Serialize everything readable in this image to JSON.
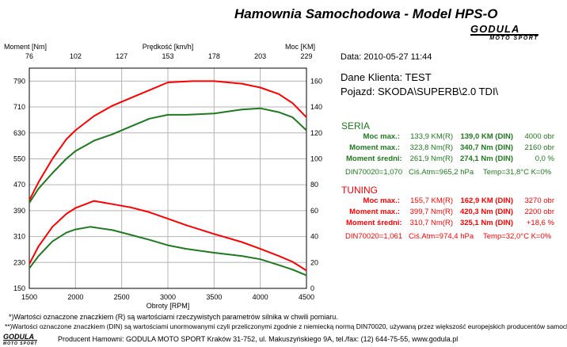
{
  "header": {
    "title": "Hamownia Samochodowa   -   Model HPS-O",
    "logo_top": "GODULA",
    "logo_bottom": "MOTO SPORT"
  },
  "info": {
    "date": "Data: 2010-05-27  11:44",
    "client": "Dane Klienta: TEST",
    "vehicle": "Pojazd: SKODA\\SUPERB\\2.0 TDI\\"
  },
  "seria": {
    "title": "SERIA",
    "rows": [
      {
        "label": "Moc max.:",
        "r": "133,9 KM(R)",
        "din": "139,0 KM (DIN)",
        "extra": "4000 obr"
      },
      {
        "label": "Moment max.:",
        "r": "323,8 Nm(R)",
        "din": "340,7 Nm (DIN)",
        "extra": "2160 obr"
      },
      {
        "label": "Moment średni:",
        "r": "261,9 Nm(R)",
        "din": "274,1 Nm (DIN)",
        "extra": "0,0 %"
      }
    ],
    "footer": {
      "din": "DIN70020=1,070",
      "atm": "Ciś.Atm=965,2 hPa",
      "temp": "Temp=31,8°C  K=0%"
    }
  },
  "tuning": {
    "title": "TUNING",
    "rows": [
      {
        "label": "Moc max.:",
        "r": "155,7 KM(R)",
        "din": "162,9 KM (DIN)",
        "extra": "3270 obr"
      },
      {
        "label": "Moment max.:",
        "r": "399,7 Nm(R)",
        "din": "420,3 Nm (DIN)",
        "extra": "2200 obr"
      },
      {
        "label": "Moment średni:",
        "r": "310,7 Nm(R)",
        "din": "325,1 Nm (DIN)",
        "extra": "+18,6 %"
      }
    ],
    "footer": {
      "din": "DIN70020=1,061",
      "atm": "Ciś.Atm=974,4 hPa",
      "temp": "Temp=32,0°C  K=0%"
    }
  },
  "footer": {
    "note1": "*)Wartości oznaczone znaczkiem (R) są wartościami rzeczywistych parametrów silnika w chwili pomiaru.",
    "note2": "**)Wartości oznaczone znaczkiem (DIN) są wartościami unormowanymi czyli przeliczonymi zgodnie z niemiecką normą DIN70020, używaną przez większość europejskich producentów samochodów.",
    "producer": "Producent Hamowni: GODULA MOTO SPORT Kraków 31-752, ul. Makuszyńskiego 9A, tel./fax: (12) 644-75-55, www.godula.pl",
    "logo_top": "GODULA",
    "logo_bottom": "MOTO SPORT"
  },
  "colors": {
    "seria": "#1e7a1e",
    "tuning": "#ff0000",
    "grid": "#b4b4b4",
    "background": "#ffffff"
  },
  "chart_data": {
    "type": "line",
    "xlabel": "Obroty [RPM]",
    "x_ticks": [
      1500,
      2000,
      2500,
      3000,
      3500,
      4000,
      4500
    ],
    "xlim": [
      1500,
      4500
    ],
    "top_axis_label": "Prędkość [km/h]",
    "top_ticks": [
      "76",
      "102",
      "127",
      "153",
      "178",
      "203",
      "229"
    ],
    "ylabel_left": "Moment [Nm]",
    "ylim_left": [
      150,
      830
    ],
    "y_ticks_left": [
      150,
      230,
      310,
      390,
      470,
      550,
      630,
      710,
      790
    ],
    "ylabel_right": "Moc [KM]",
    "ylim_right": [
      0,
      170
    ],
    "y_ticks_right": [
      0,
      20,
      40,
      60,
      80,
      100,
      120,
      140,
      160
    ],
    "grid": true,
    "series": [
      {
        "name": "TUNING",
        "axis": "right",
        "color": "#ff0000",
        "x": [
          1500,
          1600,
          1750,
          1900,
          2000,
          2200,
          2400,
          2600,
          2800,
          3000,
          3270,
          3500,
          3800,
          4000,
          4200,
          4350,
          4500
        ],
        "values": [
          68,
          82,
          100,
          115,
          122,
          133,
          141,
          147,
          153,
          159,
          160,
          160,
          158,
          155,
          150,
          143,
          132
        ]
      },
      {
        "name": "TUNING",
        "axis": "left",
        "color": "#ff0000",
        "x": [
          1500,
          1600,
          1750,
          1900,
          2000,
          2200,
          2400,
          2600,
          2800,
          3000,
          3200,
          3500,
          3800,
          4000,
          4200,
          4350,
          4500
        ],
        "values": [
          225,
          280,
          340,
          380,
          398,
          420,
          410,
          400,
          385,
          365,
          345,
          318,
          293,
          272,
          250,
          232,
          205
        ]
      },
      {
        "name": "SERIA",
        "axis": "right",
        "color": "#1e7a1e",
        "x": [
          1500,
          1600,
          1750,
          1900,
          2000,
          2200,
          2400,
          2600,
          2800,
          3000,
          3200,
          3500,
          3800,
          4000,
          4200,
          4350,
          4500
        ],
        "values": [
          66,
          77,
          89,
          100,
          106,
          114,
          119,
          125,
          131,
          134,
          134,
          135,
          138,
          139,
          136,
          132,
          122
        ]
      },
      {
        "name": "SERIA",
        "axis": "left",
        "color": "#1e7a1e",
        "x": [
          1500,
          1600,
          1750,
          1900,
          2000,
          2160,
          2400,
          2600,
          2800,
          3000,
          3200,
          3500,
          3800,
          4000,
          4200,
          4350,
          4500
        ],
        "values": [
          212,
          250,
          295,
          322,
          332,
          340,
          330,
          315,
          300,
          283,
          272,
          260,
          250,
          240,
          222,
          208,
          190
        ]
      }
    ]
  }
}
